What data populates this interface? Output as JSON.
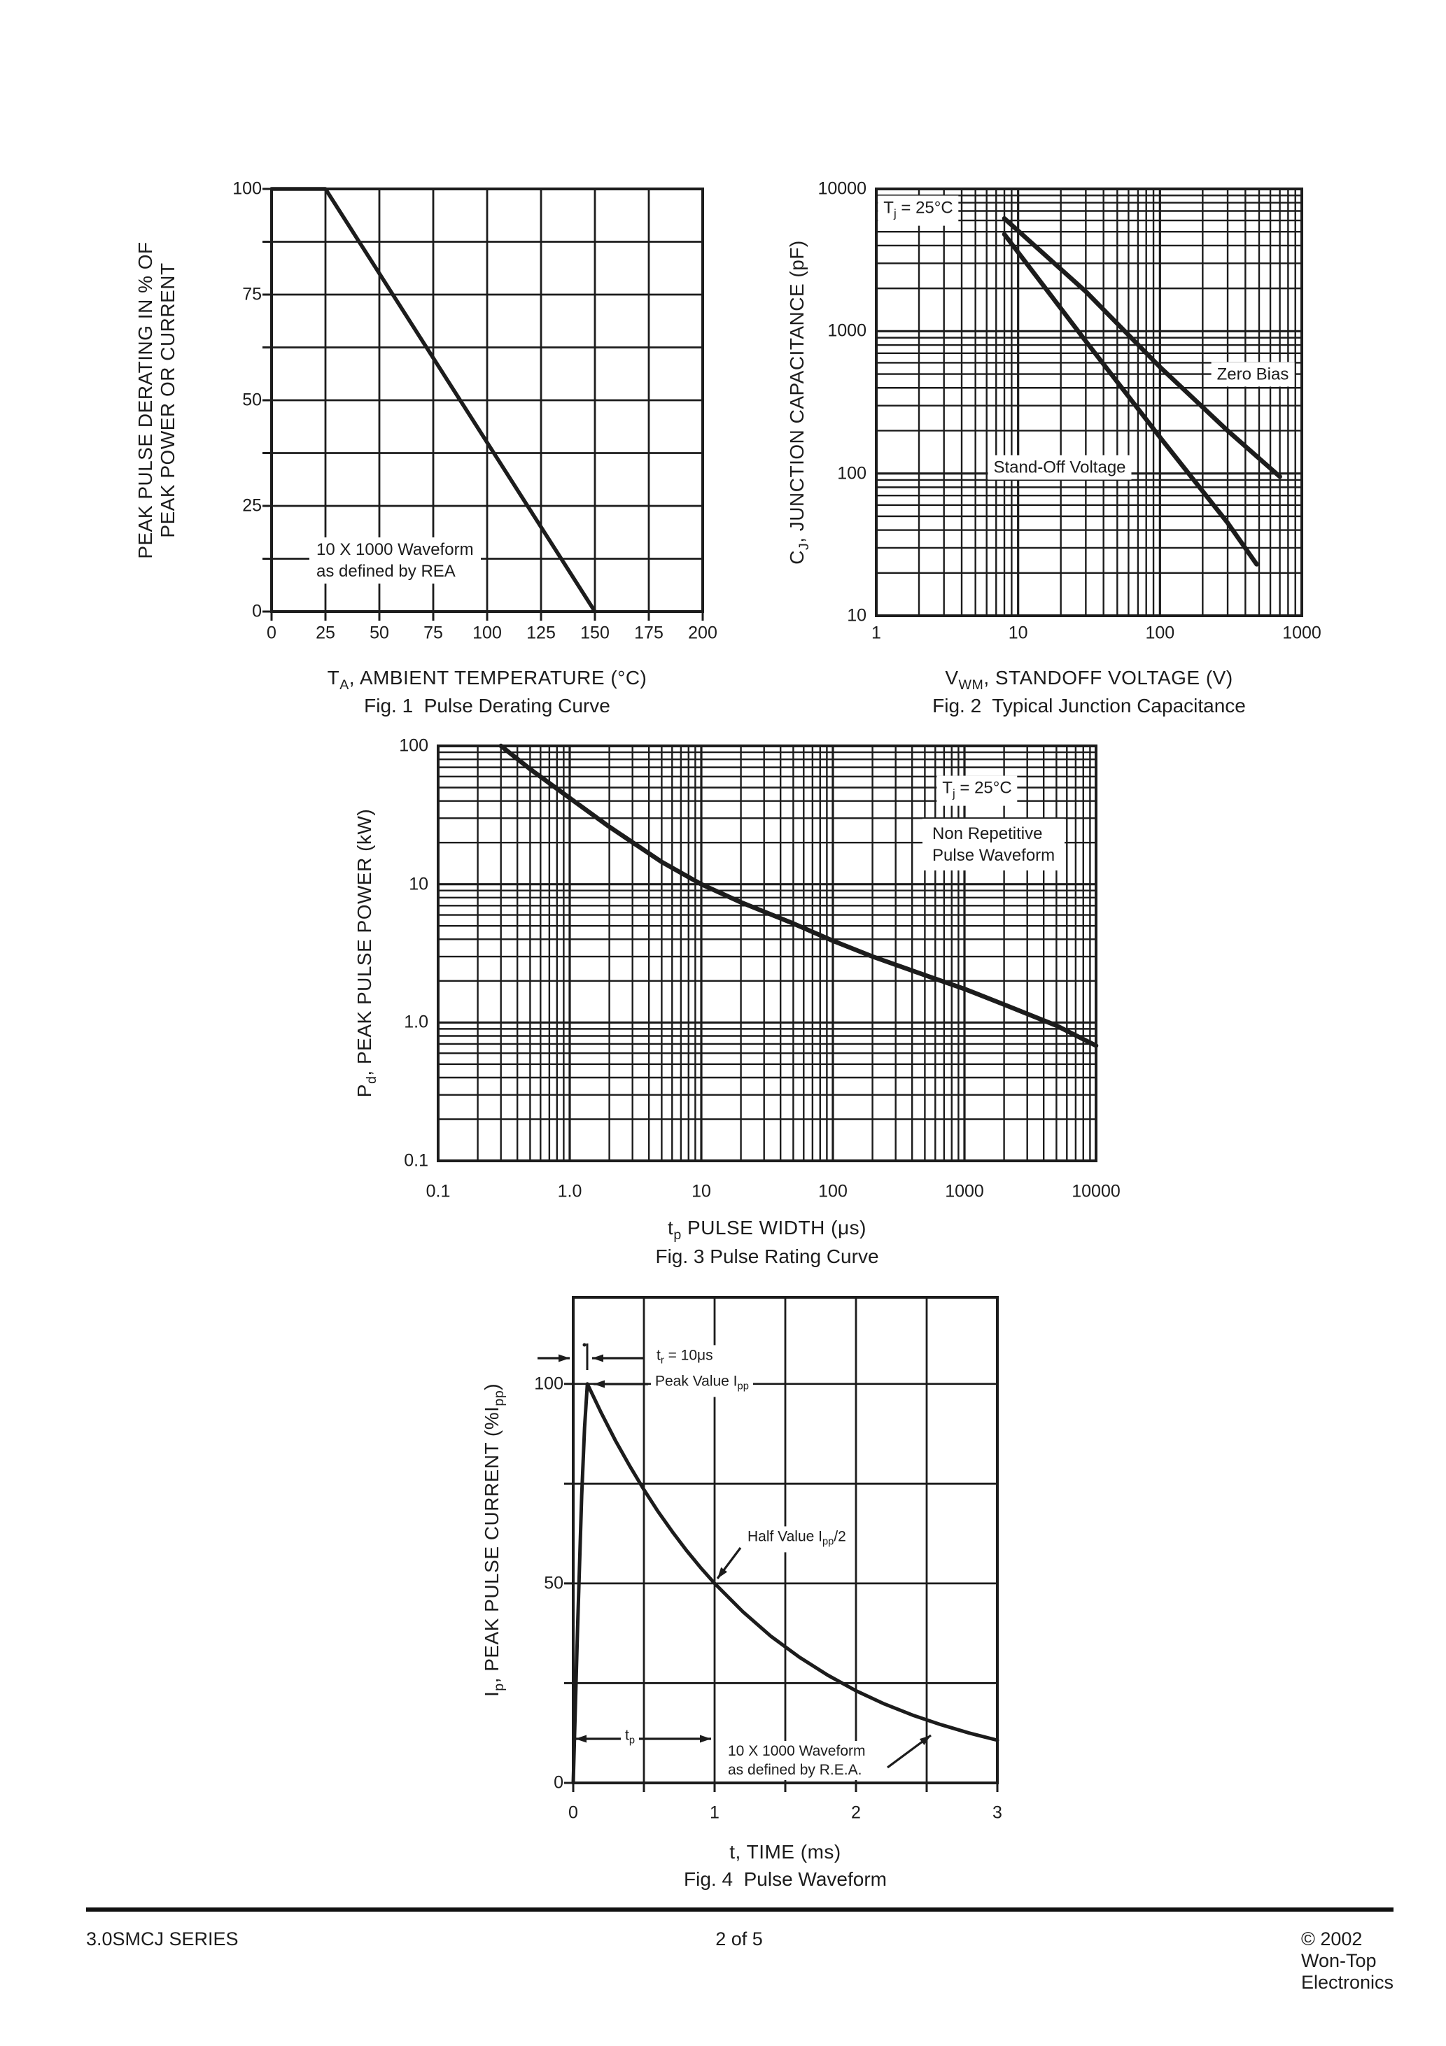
{
  "page": {
    "footer": {
      "left": "3.0SMCJ SERIES",
      "center": "2 of 5",
      "right": "© 2002 Won-Top Electronics"
    }
  },
  "chart_data": [
    {
      "id": "fig1",
      "type": "line",
      "caption": "Fig. 1  Pulse Derating Curve",
      "xlabel": "T_{A}, AMBIENT TEMPERATURE (°C)",
      "ylabel": "PEAK PULSE DERATING IN % OF\nPEAK POWER OR CURRENT",
      "xscale": "linear",
      "yscale": "linear",
      "xlim": [
        0,
        200
      ],
      "ylim": [
        0,
        100
      ],
      "xtick_labels": [
        "0",
        "25",
        "50",
        "75",
        "100",
        "125",
        "150",
        "175",
        "200"
      ],
      "ytick_labels": [
        "100",
        "75",
        "50",
        "25",
        "0"
      ],
      "grid": {
        "x_step": 25,
        "y_step": 12.5
      },
      "series": [
        {
          "name": "derating",
          "points": [
            [
              0,
              100
            ],
            [
              25,
              100
            ],
            [
              150,
              0
            ]
          ]
        }
      ],
      "annotation": "10 X 1000 Waveform\nas defined by REA"
    },
    {
      "id": "fig2",
      "type": "line",
      "caption": "Fig. 2  Typical Junction Capacitance",
      "xlabel": "V_{WM}, STANDOFF VOLTAGE (V)",
      "ylabel": "C_{J}, JUNCTION CAPACITANCE (pF)",
      "xscale": "log",
      "yscale": "log",
      "xlim": [
        1,
        1000
      ],
      "ylim": [
        10,
        10000
      ],
      "xtick_labels": [
        "1",
        "10",
        "100",
        "1000"
      ],
      "ytick_labels": [
        "10000",
        "1000",
        "100",
        "10"
      ],
      "condition": "T_{j} = 25°C",
      "series": [
        {
          "name": "Zero Bias",
          "points": [
            [
              8,
              6200
            ],
            [
              30,
              1900
            ],
            [
              100,
              560
            ],
            [
              300,
              200
            ],
            [
              700,
              95
            ]
          ]
        },
        {
          "name": "Stand-Off Voltage",
          "points": [
            [
              8,
              4800
            ],
            [
              30,
              850
            ],
            [
              100,
              180
            ],
            [
              300,
              45
            ],
            [
              480,
              23
            ]
          ]
        }
      ]
    },
    {
      "id": "fig3",
      "type": "line",
      "caption": "Fig. 3 Pulse Rating Curve",
      "xlabel": "t_{p} PULSE WIDTH (μs)",
      "ylabel": "P_{d}, PEAK PULSE POWER (kW)",
      "xscale": "log",
      "yscale": "log",
      "xlim": [
        0.1,
        10000
      ],
      "ylim": [
        0.1,
        100
      ],
      "xtick_labels": [
        "0.1",
        "1.0",
        "10",
        "100",
        "1000",
        "10000"
      ],
      "ytick_labels": [
        "100",
        "10",
        "1.0",
        "0.1"
      ],
      "condition": "T_{j} = 25°C",
      "note": "Non Repetitive\nPulse Waveform",
      "series": [
        {
          "name": "pulse rating",
          "points": [
            [
              0.3,
              100
            ],
            [
              0.5,
              68
            ],
            [
              1,
              42
            ],
            [
              2,
              26
            ],
            [
              5,
              14.5
            ],
            [
              10,
              10
            ],
            [
              20,
              7.4
            ],
            [
              50,
              5.2
            ],
            [
              100,
              3.9
            ],
            [
              200,
              3.0
            ],
            [
              500,
              2.2
            ],
            [
              1000,
              1.75
            ],
            [
              2000,
              1.35
            ],
            [
              5000,
              0.95
            ],
            [
              10000,
              0.68
            ]
          ]
        }
      ]
    },
    {
      "id": "fig4",
      "type": "line",
      "caption": "Fig. 4  Pulse Waveform",
      "xlabel": "t, TIME (ms)",
      "ylabel": "I_{p}, PEAK PULSE CURRENT (%I_{pp})",
      "xscale": "linear",
      "yscale": "linear",
      "xlim": [
        0,
        3
      ],
      "ylim": [
        0,
        121.7
      ],
      "xtick_labels": [
        "0",
        "1",
        "2",
        "3"
      ],
      "ytick_labels": [
        "100",
        "50",
        "0"
      ],
      "grid": {
        "x_step": 0.5,
        "y_step": 25
      },
      "annotations": {
        "rise_time": "t_{r} = 10μs",
        "peak": "Peak Value I_{pp}",
        "half": "Half Value I_{pp}/2",
        "pulse_width": "t_{p}",
        "waveform": "10 X 1000 Waveform\nas defined by R.E.A."
      },
      "series": [
        {
          "name": "pulse waveform",
          "points": [
            [
              0,
              0
            ],
            [
              0.03,
              38
            ],
            [
              0.06,
              72
            ],
            [
              0.08,
              89
            ],
            [
              0.1,
              100
            ],
            [
              0.2,
              92.6
            ],
            [
              0.3,
              85.7
            ],
            [
              0.4,
              79.4
            ],
            [
              0.5,
              73.5
            ],
            [
              0.6,
              68.0
            ],
            [
              0.7,
              63.0
            ],
            [
              0.8,
              58.3
            ],
            [
              0.9,
              54.0
            ],
            [
              1.0,
              50.0
            ],
            [
              1.2,
              42.9
            ],
            [
              1.4,
              36.7
            ],
            [
              1.6,
              31.5
            ],
            [
              1.8,
              27.0
            ],
            [
              2.0,
              23.1
            ],
            [
              2.2,
              19.8
            ],
            [
              2.4,
              17.0
            ],
            [
              2.6,
              14.6
            ],
            [
              2.8,
              12.5
            ],
            [
              3.0,
              10.7
            ]
          ]
        }
      ]
    }
  ]
}
